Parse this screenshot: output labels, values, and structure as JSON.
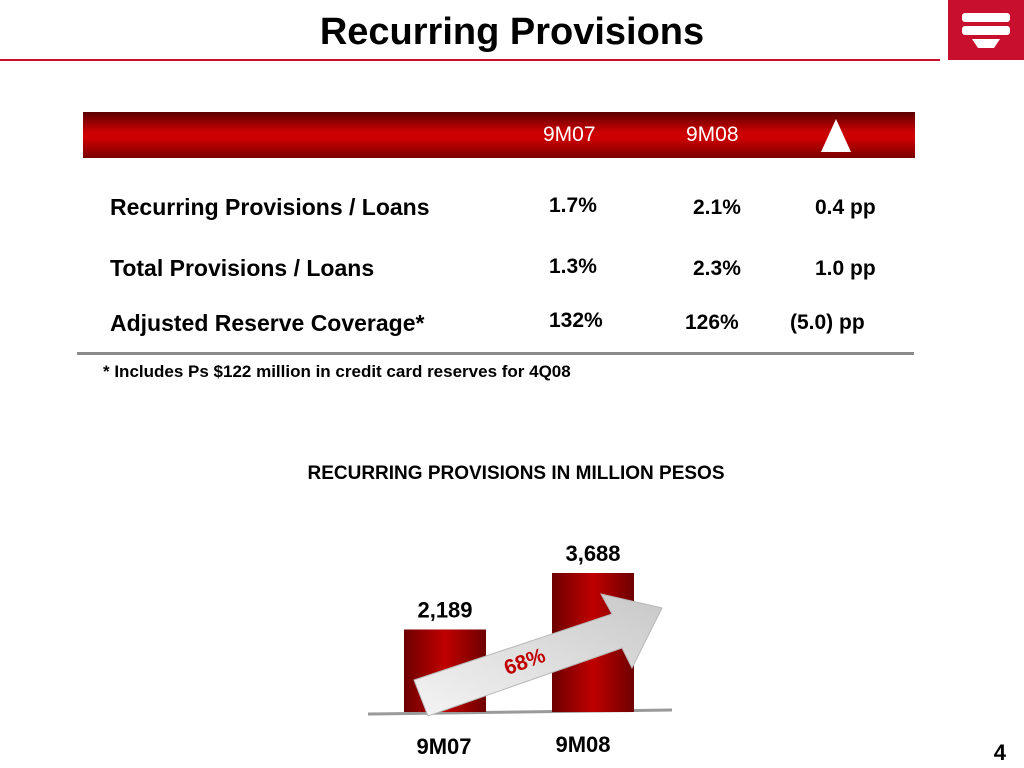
{
  "title": "Recurring Provisions",
  "table": {
    "headers": [
      "9M07",
      "9M08"
    ],
    "change_icon": "delta-triangle-icon",
    "rows": [
      {
        "label": "Recurring Provisions / Loans",
        "v1": "1.7%",
        "v2": "2.1%",
        "change": "0.4 pp"
      },
      {
        "label": "Total Provisions / Loans",
        "v1": "1.3%",
        "v2": "2.3%",
        "change": "1.0 pp"
      },
      {
        "label": "Adjusted Reserve Coverage*",
        "v1": "132%",
        "v2": "126%",
        "change": "(5.0) pp"
      }
    ],
    "footnote": "* Includes Ps $122 million in credit card reserves for 4Q08"
  },
  "chart_data": {
    "type": "bar",
    "title": "RECURRING PROVISIONS IN MILLION PESOS",
    "categories": [
      "9M07",
      "9M08"
    ],
    "values": [
      2189,
      3688
    ],
    "value_labels": [
      "2,189",
      "3,688"
    ],
    "growth_label": "68%",
    "colors": {
      "bar": "#c00000",
      "bar_dark": "#6e0000",
      "arrow": "#e0e0e0"
    }
  },
  "page_number": "4",
  "colors": {
    "brand": "#c8102e",
    "header": "#c40000"
  }
}
